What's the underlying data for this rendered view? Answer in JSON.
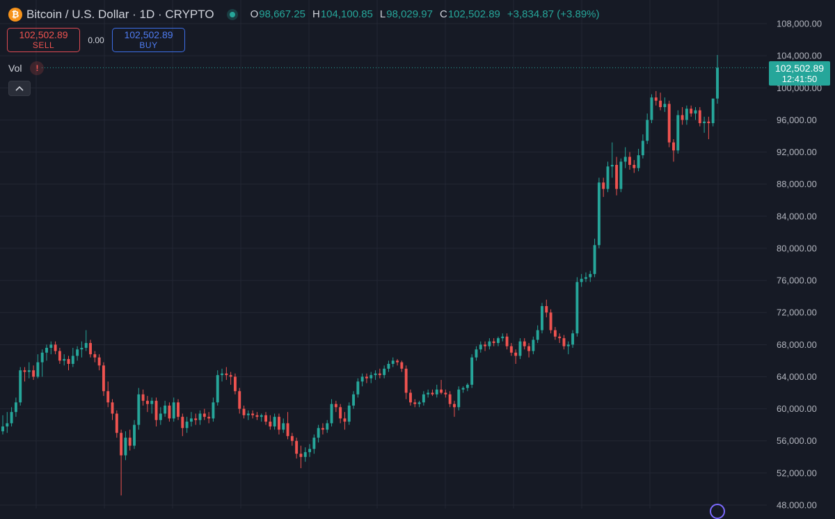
{
  "header": {
    "title": "Bitcoin / U.S. Dollar · 1D · CRYPTO",
    "icon": "bitcoin-icon",
    "ohlc": {
      "open_key": "O",
      "open": "98,667.25",
      "high_key": "H",
      "high": "104,100.85",
      "low_key": "L",
      "low": "98,029.97",
      "close_key": "C",
      "close": "102,502.89",
      "change": "+3,834.87 (+3.89%)"
    }
  },
  "trade": {
    "sell_price": "102,502.89",
    "sell_label": "SELL",
    "spread": "0.00",
    "buy_price": "102,502.89",
    "buy_label": "BUY"
  },
  "volume": {
    "label": "Vol",
    "warning": "!"
  },
  "last_price": {
    "price": "102,502.89",
    "countdown": "12:41:50"
  },
  "colors": {
    "up": "#26a69a",
    "down": "#ef5350",
    "background": "#161a25",
    "grid": "#232734",
    "price_line": "#26a69a"
  },
  "chart_data": {
    "type": "candlestick",
    "symbol": "Bitcoin / U.S. Dollar",
    "interval": "1D",
    "ylim": [
      48000,
      108000
    ],
    "y_ticks": [
      {
        "value": 48000,
        "label": "48,000.00"
      },
      {
        "value": 52000,
        "label": "52,000.00"
      },
      {
        "value": 56000,
        "label": "56,000.00"
      },
      {
        "value": 60000,
        "label": "60,000.00"
      },
      {
        "value": 64000,
        "label": "64,000.00"
      },
      {
        "value": 68000,
        "label": "68,000.00"
      },
      {
        "value": 72000,
        "label": "72,000.00"
      },
      {
        "value": 76000,
        "label": "76,000.00"
      },
      {
        "value": 80000,
        "label": "80,000.00"
      },
      {
        "value": 84000,
        "label": "84,000.00"
      },
      {
        "value": 88000,
        "label": "88,000.00"
      },
      {
        "value": 92000,
        "label": "92,000.00"
      },
      {
        "value": 96000,
        "label": "96,000.00"
      },
      {
        "value": 100000,
        "label": "100,000.00"
      },
      {
        "value": 104000,
        "label": "104,000.00"
      },
      {
        "value": 108000,
        "label": "108,000.00"
      }
    ],
    "last_price": 102502.89,
    "grid": true,
    "candles": [
      {
        "o": 57200,
        "h": 59200,
        "l": 56800,
        "c": 57800
      },
      {
        "o": 57800,
        "h": 59600,
        "l": 57000,
        "c": 58200
      },
      {
        "o": 58200,
        "h": 60200,
        "l": 57800,
        "c": 59600
      },
      {
        "o": 59600,
        "h": 61400,
        "l": 59000,
        "c": 60800
      },
      {
        "o": 60800,
        "h": 65200,
        "l": 60400,
        "c": 64800
      },
      {
        "o": 64800,
        "h": 65200,
        "l": 63400,
        "c": 64600
      },
      {
        "o": 64600,
        "h": 65800,
        "l": 63800,
        "c": 64800
      },
      {
        "o": 64800,
        "h": 65400,
        "l": 63600,
        "c": 64000
      },
      {
        "o": 64000,
        "h": 66800,
        "l": 63800,
        "c": 65800
      },
      {
        "o": 65800,
        "h": 67400,
        "l": 64000,
        "c": 67000
      },
      {
        "o": 67000,
        "h": 68000,
        "l": 66000,
        "c": 67600
      },
      {
        "o": 67600,
        "h": 68400,
        "l": 66800,
        "c": 68000
      },
      {
        "o": 68000,
        "h": 68400,
        "l": 66800,
        "c": 67200
      },
      {
        "o": 67200,
        "h": 67600,
        "l": 65600,
        "c": 66000
      },
      {
        "o": 66000,
        "h": 66800,
        "l": 65400,
        "c": 66200
      },
      {
        "o": 66200,
        "h": 66600,
        "l": 64800,
        "c": 65600
      },
      {
        "o": 65600,
        "h": 67600,
        "l": 65200,
        "c": 66600
      },
      {
        "o": 66600,
        "h": 67800,
        "l": 66000,
        "c": 67400
      },
      {
        "o": 67400,
        "h": 68400,
        "l": 66400,
        "c": 67600
      },
      {
        "o": 67600,
        "h": 69800,
        "l": 67200,
        "c": 68200
      },
      {
        "o": 68200,
        "h": 68600,
        "l": 66400,
        "c": 66800
      },
      {
        "o": 66800,
        "h": 67200,
        "l": 65800,
        "c": 66400
      },
      {
        "o": 66400,
        "h": 66800,
        "l": 64800,
        "c": 65400
      },
      {
        "o": 65400,
        "h": 65800,
        "l": 61600,
        "c": 62200
      },
      {
        "o": 62200,
        "h": 63400,
        "l": 60200,
        "c": 60800
      },
      {
        "o": 60800,
        "h": 61200,
        "l": 58600,
        "c": 59400
      },
      {
        "o": 59400,
        "h": 59800,
        "l": 56400,
        "c": 57000
      },
      {
        "o": 57000,
        "h": 57400,
        "l": 49200,
        "c": 54200
      },
      {
        "o": 54200,
        "h": 57200,
        "l": 53600,
        "c": 56400
      },
      {
        "o": 56400,
        "h": 57400,
        "l": 54800,
        "c": 55400
      },
      {
        "o": 55400,
        "h": 58600,
        "l": 55000,
        "c": 58000
      },
      {
        "o": 58000,
        "h": 62600,
        "l": 57400,
        "c": 61800
      },
      {
        "o": 61800,
        "h": 62400,
        "l": 60400,
        "c": 61000
      },
      {
        "o": 61000,
        "h": 61600,
        "l": 59600,
        "c": 60600
      },
      {
        "o": 60600,
        "h": 61400,
        "l": 59400,
        "c": 61000
      },
      {
        "o": 61000,
        "h": 61400,
        "l": 57800,
        "c": 58600
      },
      {
        "o": 58600,
        "h": 60200,
        "l": 58000,
        "c": 59400
      },
      {
        "o": 59400,
        "h": 61000,
        "l": 59000,
        "c": 60400
      },
      {
        "o": 60400,
        "h": 60800,
        "l": 58400,
        "c": 58800
      },
      {
        "o": 58800,
        "h": 61400,
        "l": 58400,
        "c": 60800
      },
      {
        "o": 60800,
        "h": 61200,
        "l": 58600,
        "c": 59000
      },
      {
        "o": 59000,
        "h": 59400,
        "l": 56600,
        "c": 57600
      },
      {
        "o": 57600,
        "h": 59000,
        "l": 57000,
        "c": 58400
      },
      {
        "o": 58400,
        "h": 59600,
        "l": 57800,
        "c": 58800
      },
      {
        "o": 58800,
        "h": 59400,
        "l": 58000,
        "c": 58600
      },
      {
        "o": 58600,
        "h": 59800,
        "l": 58000,
        "c": 59400
      },
      {
        "o": 59400,
        "h": 60000,
        "l": 58600,
        "c": 59000
      },
      {
        "o": 59000,
        "h": 59600,
        "l": 58200,
        "c": 58800
      },
      {
        "o": 58800,
        "h": 61400,
        "l": 58400,
        "c": 60800
      },
      {
        "o": 60800,
        "h": 64800,
        "l": 60400,
        "c": 64200
      },
      {
        "o": 64200,
        "h": 65000,
        "l": 63400,
        "c": 64400
      },
      {
        "o": 64400,
        "h": 65200,
        "l": 63600,
        "c": 64200
      },
      {
        "o": 64200,
        "h": 64600,
        "l": 63000,
        "c": 64000
      },
      {
        "o": 64000,
        "h": 64400,
        "l": 61800,
        "c": 62200
      },
      {
        "o": 62200,
        "h": 62600,
        "l": 59400,
        "c": 60000
      },
      {
        "o": 60000,
        "h": 60400,
        "l": 58800,
        "c": 59200
      },
      {
        "o": 59200,
        "h": 59800,
        "l": 58600,
        "c": 59400
      },
      {
        "o": 59400,
        "h": 59800,
        "l": 58800,
        "c": 59200
      },
      {
        "o": 59200,
        "h": 59600,
        "l": 58600,
        "c": 59000
      },
      {
        "o": 59000,
        "h": 59400,
        "l": 58400,
        "c": 59200
      },
      {
        "o": 59200,
        "h": 59600,
        "l": 58000,
        "c": 58400
      },
      {
        "o": 58400,
        "h": 59200,
        "l": 57400,
        "c": 57800
      },
      {
        "o": 57800,
        "h": 59400,
        "l": 57400,
        "c": 59000
      },
      {
        "o": 59000,
        "h": 59400,
        "l": 56800,
        "c": 57400
      },
      {
        "o": 57400,
        "h": 58800,
        "l": 57000,
        "c": 58200
      },
      {
        "o": 58200,
        "h": 59600,
        "l": 56200,
        "c": 56600
      },
      {
        "o": 56600,
        "h": 57000,
        "l": 55400,
        "c": 56000
      },
      {
        "o": 56000,
        "h": 56400,
        "l": 53800,
        "c": 54400
      },
      {
        "o": 54400,
        "h": 55400,
        "l": 52600,
        "c": 54000
      },
      {
        "o": 54000,
        "h": 55200,
        "l": 53400,
        "c": 54600
      },
      {
        "o": 54600,
        "h": 55600,
        "l": 54000,
        "c": 55000
      },
      {
        "o": 55000,
        "h": 56800,
        "l": 54400,
        "c": 56400
      },
      {
        "o": 56400,
        "h": 58000,
        "l": 55800,
        "c": 57600
      },
      {
        "o": 57600,
        "h": 58200,
        "l": 56800,
        "c": 57400
      },
      {
        "o": 57400,
        "h": 58600,
        "l": 57000,
        "c": 58200
      },
      {
        "o": 58200,
        "h": 61200,
        "l": 57800,
        "c": 60600
      },
      {
        "o": 60600,
        "h": 61000,
        "l": 59600,
        "c": 60200
      },
      {
        "o": 60200,
        "h": 60600,
        "l": 58200,
        "c": 58800
      },
      {
        "o": 58800,
        "h": 59600,
        "l": 57400,
        "c": 58400
      },
      {
        "o": 58400,
        "h": 60800,
        "l": 58000,
        "c": 60400
      },
      {
        "o": 60400,
        "h": 62200,
        "l": 60000,
        "c": 61800
      },
      {
        "o": 61800,
        "h": 63800,
        "l": 61400,
        "c": 63400
      },
      {
        "o": 63400,
        "h": 64400,
        "l": 62800,
        "c": 64000
      },
      {
        "o": 64000,
        "h": 64400,
        "l": 63200,
        "c": 63800
      },
      {
        "o": 63800,
        "h": 64600,
        "l": 63200,
        "c": 64200
      },
      {
        "o": 64200,
        "h": 64800,
        "l": 63600,
        "c": 64400
      },
      {
        "o": 64400,
        "h": 65000,
        "l": 63800,
        "c": 64200
      },
      {
        "o": 64200,
        "h": 65400,
        "l": 63800,
        "c": 65000
      },
      {
        "o": 65000,
        "h": 66000,
        "l": 64600,
        "c": 65600
      },
      {
        "o": 65600,
        "h": 66400,
        "l": 65200,
        "c": 66000
      },
      {
        "o": 66000,
        "h": 66200,
        "l": 65400,
        "c": 65800
      },
      {
        "o": 65800,
        "h": 66000,
        "l": 64600,
        "c": 65000
      },
      {
        "o": 65000,
        "h": 65400,
        "l": 61200,
        "c": 62000
      },
      {
        "o": 62000,
        "h": 62400,
        "l": 60400,
        "c": 60800
      },
      {
        "o": 60800,
        "h": 61200,
        "l": 60200,
        "c": 60600
      },
      {
        "o": 60600,
        "h": 61000,
        "l": 60200,
        "c": 60800
      },
      {
        "o": 60800,
        "h": 62200,
        "l": 60400,
        "c": 61800
      },
      {
        "o": 61800,
        "h": 62400,
        "l": 61400,
        "c": 62000
      },
      {
        "o": 62000,
        "h": 62400,
        "l": 61600,
        "c": 61800
      },
      {
        "o": 61800,
        "h": 63000,
        "l": 61400,
        "c": 62400
      },
      {
        "o": 62400,
        "h": 63600,
        "l": 61800,
        "c": 62000
      },
      {
        "o": 62000,
        "h": 62400,
        "l": 61400,
        "c": 61800
      },
      {
        "o": 61800,
        "h": 62200,
        "l": 60200,
        "c": 60600
      },
      {
        "o": 60600,
        "h": 61000,
        "l": 59000,
        "c": 60200
      },
      {
        "o": 60200,
        "h": 62800,
        "l": 59800,
        "c": 62400
      },
      {
        "o": 62400,
        "h": 62800,
        "l": 62000,
        "c": 62600
      },
      {
        "o": 62600,
        "h": 63200,
        "l": 62200,
        "c": 63000
      },
      {
        "o": 63000,
        "h": 66800,
        "l": 62600,
        "c": 66400
      },
      {
        "o": 66400,
        "h": 67800,
        "l": 66000,
        "c": 67400
      },
      {
        "o": 67400,
        "h": 68400,
        "l": 67000,
        "c": 68000
      },
      {
        "o": 68000,
        "h": 68400,
        "l": 67200,
        "c": 67800
      },
      {
        "o": 67800,
        "h": 68800,
        "l": 67400,
        "c": 68400
      },
      {
        "o": 68400,
        "h": 68800,
        "l": 67800,
        "c": 68200
      },
      {
        "o": 68200,
        "h": 69000,
        "l": 67800,
        "c": 68800
      },
      {
        "o": 68800,
        "h": 69400,
        "l": 68400,
        "c": 69000
      },
      {
        "o": 69000,
        "h": 69400,
        "l": 67400,
        "c": 67800
      },
      {
        "o": 67800,
        "h": 68200,
        "l": 66600,
        "c": 67000
      },
      {
        "o": 67000,
        "h": 67400,
        "l": 65600,
        "c": 66600
      },
      {
        "o": 66600,
        "h": 68800,
        "l": 66200,
        "c": 68400
      },
      {
        "o": 68400,
        "h": 68800,
        "l": 67400,
        "c": 67800
      },
      {
        "o": 67800,
        "h": 68200,
        "l": 66400,
        "c": 67200
      },
      {
        "o": 67200,
        "h": 69000,
        "l": 66800,
        "c": 68600
      },
      {
        "o": 68600,
        "h": 70400,
        "l": 68200,
        "c": 69800
      },
      {
        "o": 69800,
        "h": 73200,
        "l": 69400,
        "c": 72800
      },
      {
        "o": 72800,
        "h": 73600,
        "l": 71400,
        "c": 72000
      },
      {
        "o": 72000,
        "h": 72400,
        "l": 69400,
        "c": 69800
      },
      {
        "o": 69800,
        "h": 70200,
        "l": 68600,
        "c": 69000
      },
      {
        "o": 69000,
        "h": 69400,
        "l": 68200,
        "c": 68800
      },
      {
        "o": 68800,
        "h": 69200,
        "l": 67400,
        "c": 67800
      },
      {
        "o": 67800,
        "h": 68400,
        "l": 66800,
        "c": 68000
      },
      {
        "o": 68000,
        "h": 69800,
        "l": 67600,
        "c": 69400
      },
      {
        "o": 69400,
        "h": 76400,
        "l": 69000,
        "c": 75800
      },
      {
        "o": 75800,
        "h": 76800,
        "l": 75200,
        "c": 76200
      },
      {
        "o": 76200,
        "h": 77000,
        "l": 75800,
        "c": 76400
      },
      {
        "o": 76400,
        "h": 77200,
        "l": 75800,
        "c": 76800
      },
      {
        "o": 76800,
        "h": 81200,
        "l": 76400,
        "c": 80400
      },
      {
        "o": 80400,
        "h": 88800,
        "l": 80000,
        "c": 88200
      },
      {
        "o": 88200,
        "h": 88800,
        "l": 86400,
        "c": 87400
      },
      {
        "o": 87400,
        "h": 90800,
        "l": 87000,
        "c": 90200
      },
      {
        "o": 90200,
        "h": 93200,
        "l": 88800,
        "c": 90400
      },
      {
        "o": 90400,
        "h": 91400,
        "l": 86600,
        "c": 87400
      },
      {
        "o": 87400,
        "h": 91200,
        "l": 87000,
        "c": 90800
      },
      {
        "o": 90800,
        "h": 92600,
        "l": 90000,
        "c": 91400
      },
      {
        "o": 91400,
        "h": 92000,
        "l": 89800,
        "c": 90400
      },
      {
        "o": 90400,
        "h": 91000,
        "l": 89400,
        "c": 90000
      },
      {
        "o": 90000,
        "h": 92400,
        "l": 89600,
        "c": 91600
      },
      {
        "o": 91600,
        "h": 94200,
        "l": 91200,
        "c": 93400
      },
      {
        "o": 93400,
        "h": 96800,
        "l": 93000,
        "c": 96000
      },
      {
        "o": 96000,
        "h": 99200,
        "l": 95600,
        "c": 98800
      },
      {
        "o": 98800,
        "h": 99600,
        "l": 97800,
        "c": 98400
      },
      {
        "o": 98400,
        "h": 99400,
        "l": 97200,
        "c": 97600
      },
      {
        "o": 97600,
        "h": 98800,
        "l": 97000,
        "c": 98000
      },
      {
        "o": 98000,
        "h": 98400,
        "l": 92600,
        "c": 93200
      },
      {
        "o": 93200,
        "h": 93600,
        "l": 90800,
        "c": 92200
      },
      {
        "o": 92200,
        "h": 97200,
        "l": 91800,
        "c": 96600
      },
      {
        "o": 96600,
        "h": 97600,
        "l": 95400,
        "c": 96000
      },
      {
        "o": 96000,
        "h": 97800,
        "l": 95400,
        "c": 97400
      },
      {
        "o": 97400,
        "h": 97800,
        "l": 96400,
        "c": 96800
      },
      {
        "o": 96800,
        "h": 97600,
        "l": 96000,
        "c": 97200
      },
      {
        "o": 97200,
        "h": 97600,
        "l": 95200,
        "c": 95600
      },
      {
        "o": 95600,
        "h": 96400,
        "l": 94400,
        "c": 95800
      },
      {
        "o": 95800,
        "h": 96400,
        "l": 93600,
        "c": 95600
      },
      {
        "o": 95600,
        "h": 98600,
        "l": 95200,
        "c": 98667
      },
      {
        "o": 98667.25,
        "h": 104100.85,
        "l": 98029.97,
        "c": 102502.89
      }
    ]
  }
}
